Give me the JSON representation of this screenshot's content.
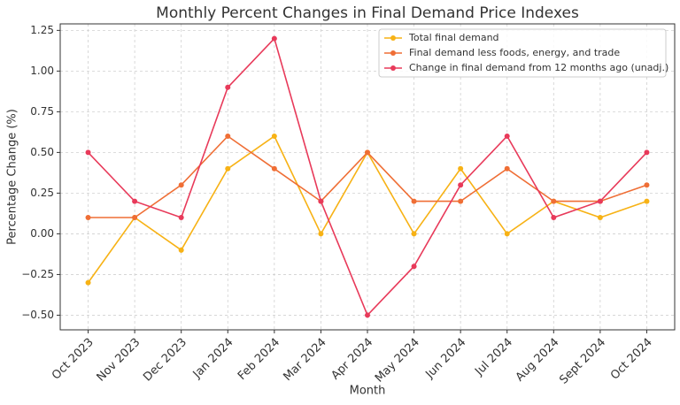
{
  "chart_data": {
    "type": "line",
    "title": "Monthly Percent Changes in Final Demand Price Indexes",
    "x_label": "Month",
    "y_label": "Percentage Change (%)",
    "categories": [
      "Oct 2023",
      "Nov 2023",
      "Dec 2023",
      "Jan 2024",
      "Feb 2024",
      "Mar 2024",
      "Apr 2024",
      "May 2024",
      "Jun 2024",
      "Jul 2024",
      "Aug 2024",
      "Sept 2024",
      "Oct 2024"
    ],
    "series": [
      {
        "name": "Total final demand",
        "color": "#f7b215",
        "values": [
          -0.3,
          0.1,
          -0.1,
          0.4,
          0.6,
          0.0,
          0.5,
          0.0,
          0.4,
          0.0,
          0.2,
          0.1,
          0.2
        ]
      },
      {
        "name": "Final demand less foods, energy, and trade",
        "color": "#ef6e35",
        "values": [
          0.1,
          0.1,
          0.3,
          0.6,
          0.4,
          0.2,
          0.5,
          0.2,
          0.2,
          0.4,
          0.2,
          0.2,
          0.3
        ]
      },
      {
        "name": "Change in final demand from 12 months ago (unadj.)",
        "color": "#e83a5a",
        "values": [
          0.5,
          0.2,
          0.1,
          0.9,
          1.2,
          0.2,
          -0.5,
          -0.2,
          0.3,
          0.6,
          0.1,
          0.2,
          0.5
        ]
      }
    ],
    "ylim": [
      -0.59,
      1.29
    ],
    "yticks": [
      {
        "value": -0.5,
        "label": "−0.50"
      },
      {
        "value": -0.25,
        "label": "−0.25"
      },
      {
        "value": 0,
        "label": "0.00"
      },
      {
        "value": 0.25,
        "label": "0.25"
      },
      {
        "value": 0.5,
        "label": "0.50"
      },
      {
        "value": 0.75,
        "label": "0.75"
      },
      {
        "value": 1.0,
        "label": "1.00"
      },
      {
        "value": 1.25,
        "label": "1.25"
      }
    ],
    "grid": true,
    "legend": "upper right"
  }
}
